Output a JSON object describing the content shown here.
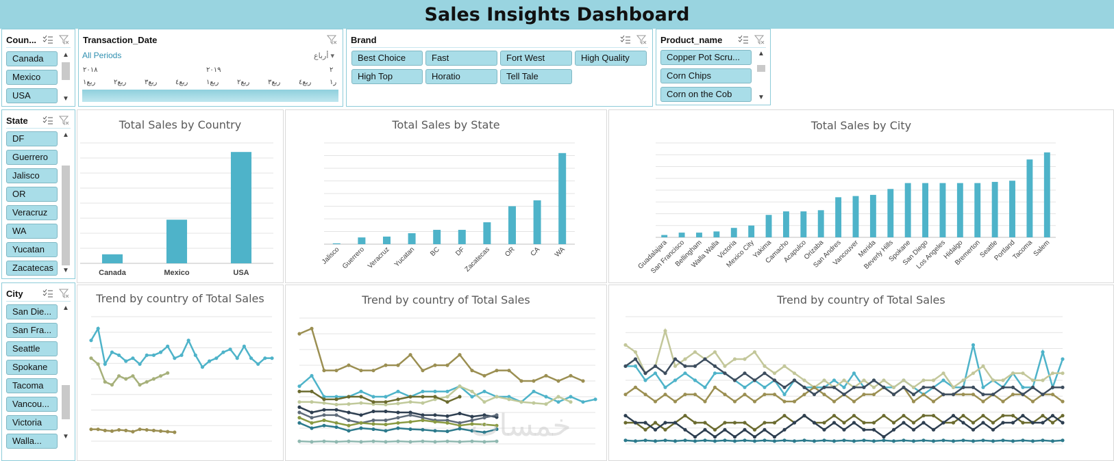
{
  "title": "Sales Insights Dashboard",
  "slicers": {
    "country": {
      "title": "Coun...",
      "items": [
        "Canada",
        "Mexico",
        "USA"
      ]
    },
    "transaction": {
      "title": "Transaction_Date",
      "period_label": "All Periods",
      "level_label": "أرباع",
      "years": [
        "٢٠١٨",
        "٢٠١٩",
        "٢"
      ],
      "quarters": [
        "ربع١",
        "ربع٢",
        "ربع٣",
        "ربع٤",
        "ربع١",
        "ربع٢",
        "ربع٣",
        "ربع٤",
        "ر١"
      ]
    },
    "brand": {
      "title": "Brand",
      "items": [
        "Best Choice",
        "Fast",
        "Fort West",
        "High Quality",
        "High Top",
        "Horatio",
        "Tell Tale"
      ]
    },
    "product": {
      "title": "Product_name",
      "items": [
        "Copper Pot Scru...",
        "Corn Chips",
        "Corn on the Cob"
      ]
    },
    "state": {
      "title": "State",
      "items": [
        "DF",
        "Guerrero",
        "Jalisco",
        "OR",
        "Veracruz",
        "WA",
        "Yucatan",
        "Zacatecas"
      ]
    },
    "city": {
      "title": "City",
      "items": [
        "San Die...",
        "San Fra...",
        "Seattle",
        "Spokane",
        "Tacoma",
        "Vancou...",
        "Victoria",
        "Walla..."
      ]
    }
  },
  "watermark": "خمسات",
  "colors": {
    "bar": "#4eb3c9",
    "header": "#99d4e0",
    "slicer_item": "#a9dde8"
  },
  "chart_data": [
    {
      "type": "bar",
      "title": "Total Sales by Country",
      "categories": [
        "Canada",
        "Mexico",
        "USA"
      ],
      "values": [
        6,
        29,
        74
      ],
      "ylim": [
        0,
        80
      ]
    },
    {
      "type": "bar",
      "title": "Total Sales by State",
      "categories": [
        "Jalisco",
        "Guerrero",
        "Veracruz",
        "Yucatan",
        "BC",
        "DF",
        "Zacatecas",
        "OR",
        "CA",
        "WA"
      ],
      "values": [
        1,
        8,
        9,
        13,
        17,
        17,
        26,
        45,
        52,
        108
      ],
      "ylim": [
        0,
        120
      ]
    },
    {
      "type": "bar",
      "title": "Total Sales by City",
      "categories": [
        "Guadalajara",
        "San Francisco",
        "Bellingham",
        "Walla Walla",
        "Victoria",
        "Mexico City",
        "Yakima",
        "Camacho",
        "Acapulco",
        "Orizaba",
        "San Andres",
        "Vancouver",
        "Merida",
        "Beverly Hills",
        "Spokane",
        "San Diego",
        "Los Angeles",
        "Hidalgo",
        "Bremerton",
        "Seattle",
        "Portland",
        "Tacoma",
        "Salem"
      ],
      "values": [
        1,
        2,
        2,
        2.5,
        4,
        5,
        9.5,
        11,
        11,
        11.5,
        17,
        17.5,
        18,
        20.5,
        23,
        23,
        23,
        23,
        23,
        23.5,
        24,
        33,
        36
      ],
      "ylim": [
        0,
        40
      ]
    },
    {
      "type": "line",
      "title": "Trend by country of Total Sales",
      "series": [
        {
          "color": "#4eb3c9",
          "values": [
            8,
            10,
            4,
            6,
            5.5,
            4.5,
            5,
            4,
            5.5,
            5.5,
            6,
            7,
            5,
            5.5,
            8,
            5.5,
            3.5,
            4.5,
            5,
            6,
            6.5,
            5,
            7,
            5,
            4,
            5,
            5
          ]
        },
        {
          "color": "#a6b07a",
          "values": [
            5,
            4,
            1,
            0.5,
            2,
            1.5,
            2,
            0.5,
            1,
            1.5,
            2,
            2.5
          ]
        },
        {
          "color": "#9b8f52",
          "values": [
            -7,
            -7,
            -7.2,
            -7.3,
            -7.1,
            -7.2,
            -7.4,
            -7,
            -7.1,
            -7.2,
            -7.3,
            -7.4,
            -7.5
          ]
        }
      ],
      "ylim": [
        -9,
        12
      ]
    },
    {
      "type": "line",
      "title": "Trend by country of Total Sales",
      "series": [
        {
          "color": "#9b8f52",
          "values": [
            14,
            15,
            7,
            7,
            8,
            7,
            7,
            8,
            8,
            10,
            7,
            8,
            8,
            10,
            7,
            6,
            7,
            7,
            5,
            5,
            6,
            5,
            6,
            5
          ]
        },
        {
          "color": "#4eb3c9",
          "values": [
            4,
            6,
            2,
            2,
            2,
            3,
            2,
            2,
            3,
            2,
            3,
            3,
            3,
            4,
            2,
            3,
            2,
            2,
            1,
            3,
            2,
            1,
            2,
            1,
            1.5
          ]
        },
        {
          "color": "#c0c99a",
          "values": [
            1,
            1,
            0.8,
            0.5,
            0.6,
            0.8,
            0.6,
            0.5,
            0.7,
            1,
            0.8,
            1.5,
            2,
            4,
            3,
            1,
            2,
            1.5,
            1,
            0.8,
            0.6,
            2,
            1
          ]
        },
        {
          "color": "#6b6b2f",
          "values": [
            3,
            3,
            1.5,
            1.5,
            2,
            2,
            1,
            1,
            1.5,
            2,
            2,
            2,
            1,
            2
          ]
        },
        {
          "color": "#2d3e50",
          "values": [
            0,
            -1,
            -0.5,
            -0.5,
            -1,
            -1.5,
            -0.8,
            -0.8,
            -1,
            -1,
            -1.5,
            -1.5,
            -1.7,
            -1.2,
            -1.8,
            -1.5,
            -1.9
          ]
        },
        {
          "color": "#5e6b7a",
          "values": [
            -1,
            -2,
            -1.5,
            -1.5,
            -2.5,
            -3,
            -2.5,
            -2.5,
            -2,
            -1.5,
            -2,
            -2.5,
            -2.5,
            -3,
            -2.5,
            -2,
            -1.5
          ]
        },
        {
          "color": "#8a9a42",
          "values": [
            -2,
            -3,
            -2.5,
            -3,
            -3.5,
            -3,
            -3.2,
            -3.3,
            -3,
            -2.8,
            -2.5,
            -2.8,
            -3,
            -3.5,
            -3.2,
            -3.3,
            -3.5
          ]
        },
        {
          "color": "#2c7a8c",
          "values": [
            -3,
            -4,
            -3.5,
            -3.8,
            -4.5,
            -4,
            -4.2,
            -4.5,
            -4,
            -4.2,
            -4.3,
            -4.5,
            -4.6,
            -4.1,
            -4.5,
            -4.8,
            -4.2
          ]
        },
        {
          "color": "#8fb8b0",
          "values": [
            -6.5,
            -6.6,
            -6.5,
            -6.6,
            -6.5,
            -6.6,
            -6.5,
            -6.6,
            -6.5,
            -6.6,
            -6.5,
            -6.6,
            -6.5,
            -6.6,
            -6.5,
            -6.6,
            -6.5
          ]
        }
      ],
      "ylim": [
        -7,
        17
      ]
    },
    {
      "type": "line",
      "title": "Trend by country of Total Sales",
      "series": [
        {
          "color": "#4eb3c9",
          "values": [
            6,
            6,
            4,
            5,
            3,
            4,
            5,
            4,
            3,
            5,
            5,
            4,
            3,
            4,
            3,
            4,
            2,
            4,
            3,
            3,
            3,
            4,
            3,
            5,
            3,
            4,
            3,
            3,
            4,
            3,
            2,
            3,
            4,
            3,
            3,
            9,
            3,
            4,
            3,
            5,
            3,
            3,
            8,
            3,
            7
          ]
        },
        {
          "color": "#c3c79a",
          "values": [
            9,
            8,
            5,
            6,
            11,
            6,
            7,
            8,
            7,
            8,
            6,
            7,
            7,
            8,
            6,
            5,
            6,
            5,
            4,
            3,
            4,
            3,
            4,
            3,
            4,
            3,
            4,
            3,
            4,
            3,
            4,
            4,
            5,
            3,
            4,
            5,
            6,
            4,
            4,
            5,
            5,
            4,
            4,
            5,
            5
          ]
        },
        {
          "color": "#9b8f52",
          "values": [
            2,
            3,
            2,
            1,
            2,
            1,
            2,
            2,
            1,
            3,
            2,
            1,
            2,
            1,
            2,
            2,
            1,
            1,
            2,
            3,
            2,
            1,
            2,
            1,
            2,
            2,
            3,
            2,
            3,
            1,
            2,
            1,
            2,
            2,
            2,
            2,
            1,
            2,
            1,
            2,
            2,
            1,
            2,
            2,
            1
          ]
        },
        {
          "color": "#3d4d5e",
          "values": [
            6,
            7,
            5,
            6,
            5,
            7,
            6,
            6,
            7,
            6,
            5,
            4,
            5,
            4,
            5,
            4,
            3,
            4,
            3,
            2,
            3,
            3,
            2,
            3,
            3,
            4,
            3,
            2,
            3,
            2,
            3,
            3,
            2,
            2,
            3,
            3,
            2,
            2,
            3,
            3,
            2,
            3,
            2,
            3,
            3
          ]
        },
        {
          "color": "#6b6b2f",
          "values": [
            -2,
            -2,
            -3,
            -2,
            -3,
            -2,
            -1,
            -2,
            -2,
            -3,
            -2,
            -2,
            -2,
            -3,
            -2,
            -2,
            -1,
            -2,
            -1,
            -2,
            -2,
            -1,
            -2,
            -1,
            -2,
            -2,
            -1,
            -2,
            -1,
            -2,
            -1,
            -1,
            -2,
            -2,
            -1,
            -2,
            -1,
            -2,
            -1,
            -1,
            -2,
            -2,
            -1,
            -2,
            -1
          ]
        },
        {
          "color": "#2c7a8c",
          "values": [
            -4.5,
            -4.6,
            -4.5,
            -4.6,
            -4.5,
            -4.6,
            -4.5,
            -4.6,
            -4.5,
            -4.6,
            -4.5,
            -4.6,
            -4.5,
            -4.6,
            -4.5,
            -4.6,
            -4.5,
            -4.6,
            -4.5,
            -4.6,
            -4.5,
            -4.6,
            -4.5,
            -4.6,
            -4.5,
            -4.6,
            -4.5,
            -4.6,
            -4.5,
            -4.6,
            -4.5,
            -4.6,
            -4.5,
            -4.6,
            -4.5,
            -4.6,
            -4.5,
            -4.6,
            -4.5,
            -4.6,
            -4.5,
            -4.6,
            -4.5,
            -4.6,
            -4.5
          ]
        },
        {
          "color": "#2d3e50",
          "values": [
            -1,
            -2,
            -2,
            -3,
            -2,
            -2,
            -3,
            -4,
            -3,
            -4,
            -3,
            -4,
            -3,
            -4,
            -3,
            -4,
            -3,
            -2,
            -1,
            -2,
            -3,
            -2,
            -3,
            -2,
            -3,
            -3,
            -4,
            -3,
            -2,
            -3,
            -2,
            -3,
            -2,
            -1,
            -2,
            -3,
            -2,
            -3,
            -2,
            -2,
            -1,
            -2,
            -2,
            -1,
            -2
          ]
        }
      ],
      "ylim": [
        -5,
        13
      ]
    }
  ]
}
